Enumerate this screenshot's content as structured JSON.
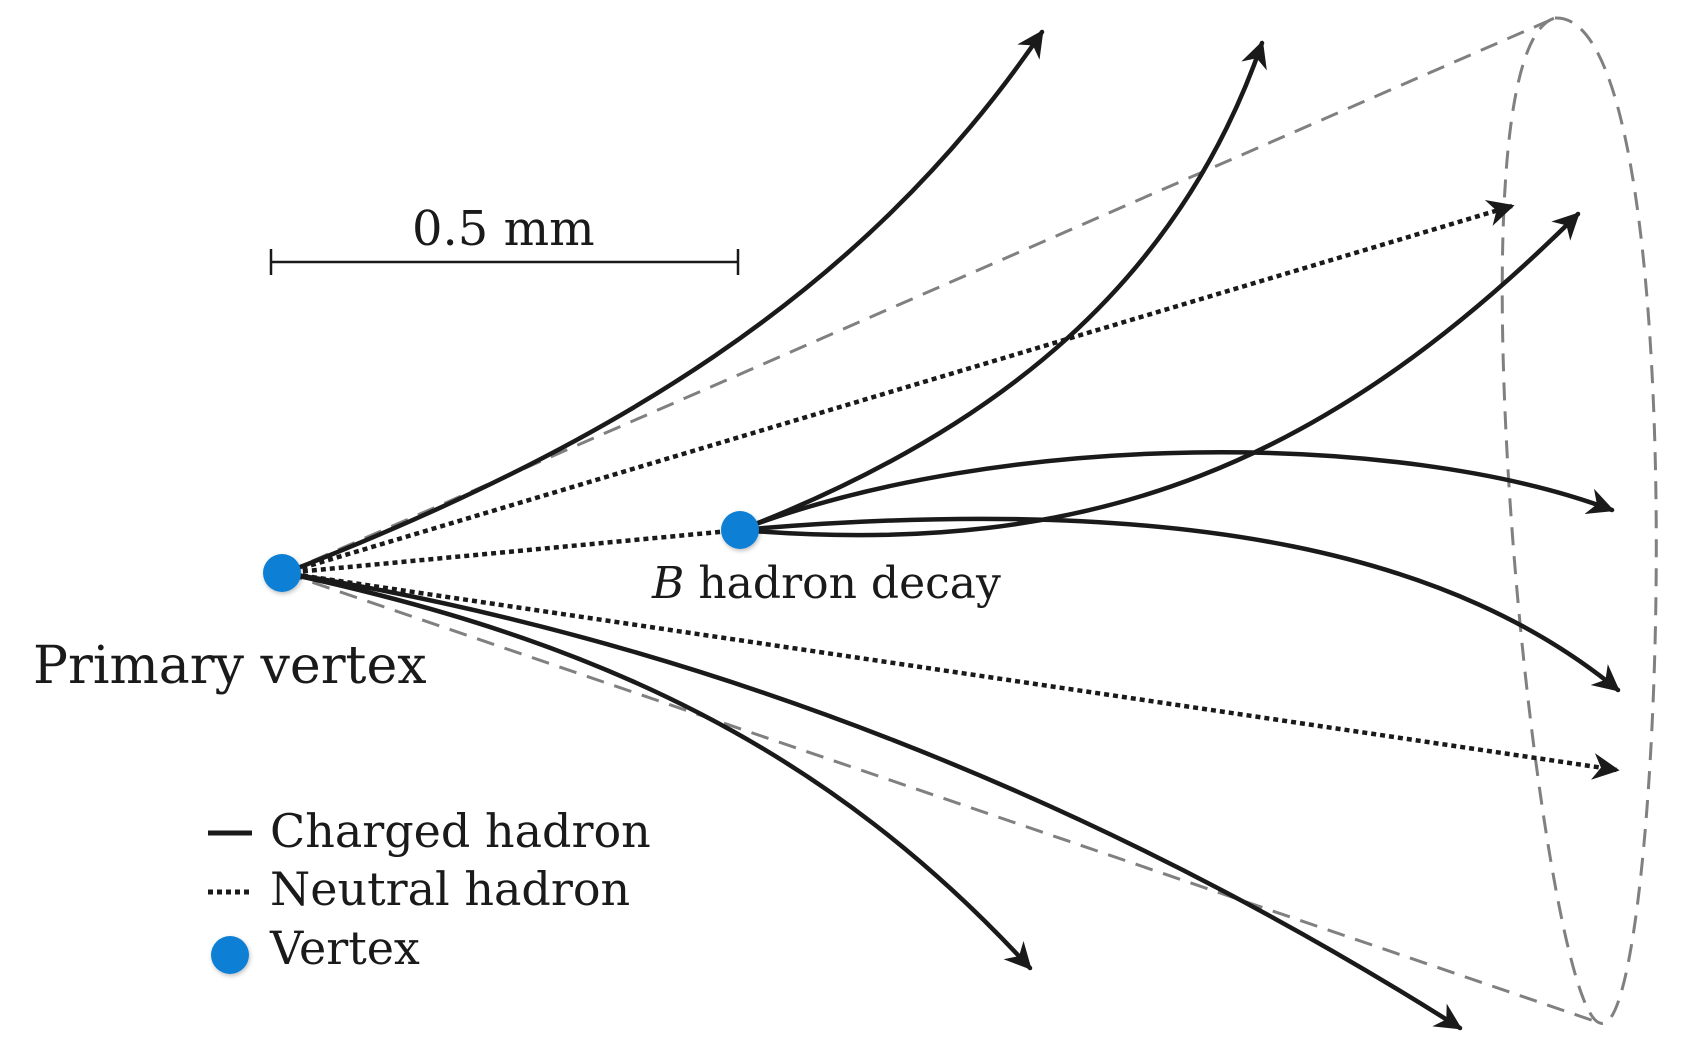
{
  "labels": {
    "scale": "0.5 mm",
    "b_decay_symbol": "B",
    "b_decay_text": "hadron decay",
    "primary_vertex": "Primary vertex"
  },
  "legend": {
    "charged": "Charged hadron",
    "neutral": "Neutral hadron",
    "vertex": "Vertex"
  },
  "colors": {
    "vertex": "#0a7fd4",
    "track": "#1a1a1a",
    "cone": "#808080"
  }
}
